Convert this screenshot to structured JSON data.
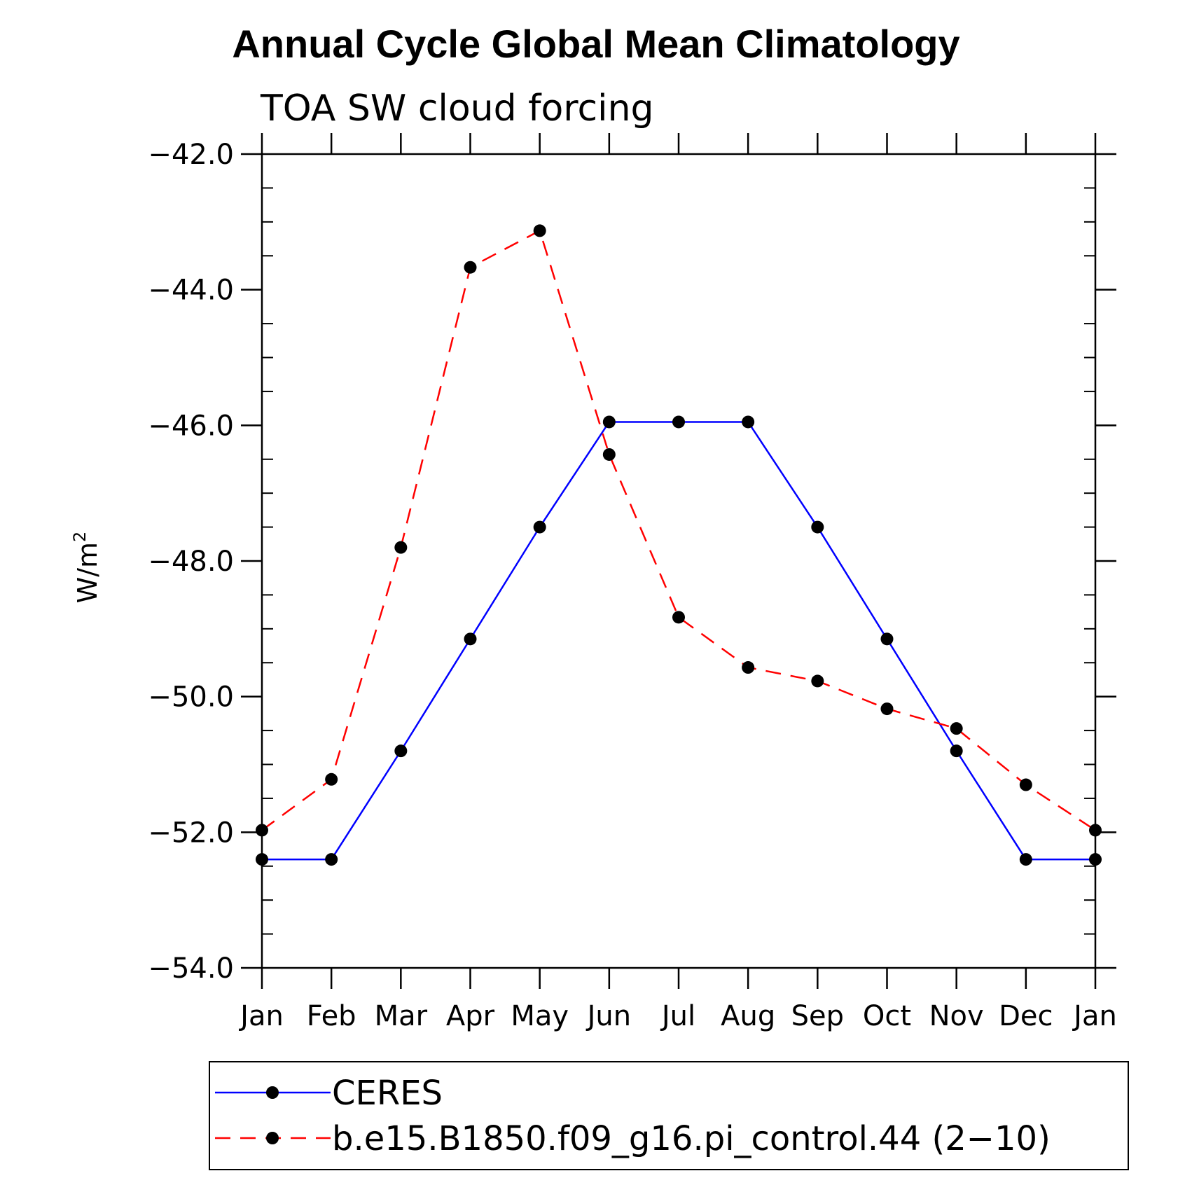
{
  "chart_data": {
    "type": "line",
    "title": "Annual Cycle Global Mean Climatology",
    "subtitle": "TOA SW cloud forcing",
    "xlabel": "",
    "ylabel": "W/m",
    "ylabel_superscript": "2",
    "categories": [
      "Jan",
      "Feb",
      "Mar",
      "Apr",
      "May",
      "Jun",
      "Jul",
      "Aug",
      "Sep",
      "Oct",
      "Nov",
      "Dec",
      "Jan"
    ],
    "ylim": [
      -54.0,
      -42.0
    ],
    "yticks": [
      "-42.0",
      "-44.0",
      "-46.0",
      "-48.0",
      "-50.0",
      "-52.0",
      "-54.0"
    ],
    "series": [
      {
        "name": "CERES",
        "color": "#0000ff",
        "dash": "solid",
        "values": [
          -52.4,
          -52.4,
          -50.8,
          -49.15,
          -47.5,
          -45.95,
          -45.95,
          -45.95,
          -47.5,
          -49.15,
          -50.8,
          -52.4,
          -52.4
        ]
      },
      {
        "name": "b.e15.B1850.f09_g16.pi_control.44 (2-10)",
        "color": "#ff0000",
        "dash": "dashed",
        "values": [
          -51.97,
          -51.22,
          -47.8,
          -43.67,
          -43.13,
          -46.43,
          -48.83,
          -49.57,
          -49.77,
          -50.18,
          -50.47,
          -51.3,
          -51.97
        ]
      }
    ],
    "legend_position": "bottom"
  }
}
